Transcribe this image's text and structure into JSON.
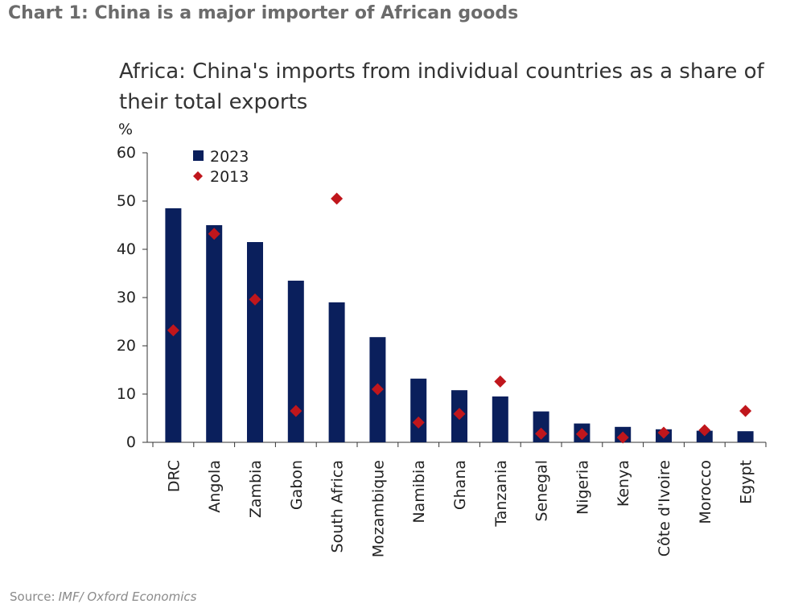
{
  "header": {
    "title": "Chart 1: China is a major importer of African goods"
  },
  "footer": {
    "source_label": "Source:",
    "source_text": "IMF/ Oxford Economics"
  },
  "chart_data": {
    "type": "bar",
    "title": "Africa: China's imports from individual countries as a share of their total exports",
    "ylabel": "%",
    "xlabel": "",
    "ylim": [
      0,
      60
    ],
    "yticks": [
      0,
      10,
      20,
      30,
      40,
      50,
      60
    ],
    "grid": false,
    "legend_position": "top-left",
    "categories": [
      "DRC",
      "Angola",
      "Zambia",
      "Gabon",
      "South Africa",
      "Mozambique",
      "Namibia",
      "Ghana",
      "Tanzania",
      "Senegal",
      "Nigeria",
      "Kenya",
      "Côte d'Ivoire",
      "Morocco",
      "Egypt"
    ],
    "series": [
      {
        "name": "2023",
        "mark": "bar",
        "color": "#0a1f5c",
        "values": [
          48.5,
          45,
          41.5,
          33.5,
          29,
          21.8,
          13.2,
          10.8,
          9.5,
          6.4,
          3.9,
          3.2,
          2.7,
          2.4,
          2.3
        ]
      },
      {
        "name": "2013",
        "mark": "diamond",
        "color": "#c0161c",
        "values": [
          23.2,
          43.2,
          29.6,
          6.5,
          50.5,
          11,
          4.1,
          5.9,
          12.6,
          1.8,
          1.7,
          1.0,
          2.0,
          2.5,
          6.5
        ]
      }
    ]
  }
}
